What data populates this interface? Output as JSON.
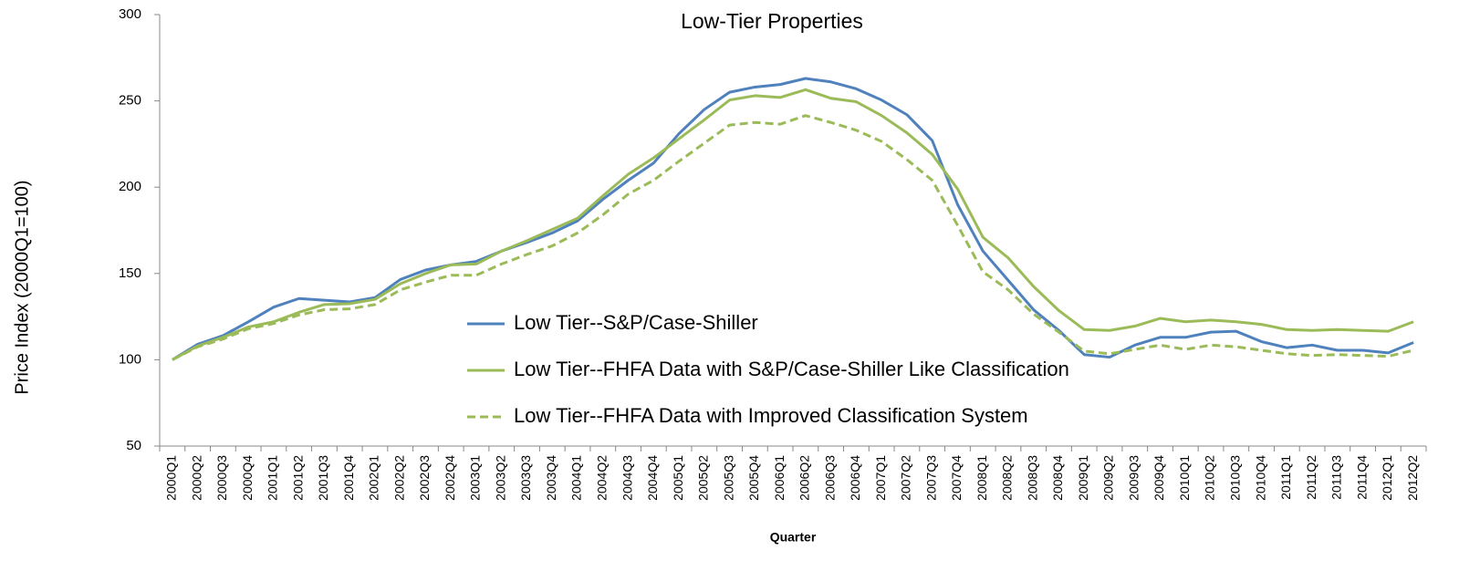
{
  "chart_data": {
    "type": "line",
    "title": "Low-Tier Properties",
    "x_label": "Quarter",
    "y_label": "Price Index (2000Q1=100)",
    "categories": [
      "2000Q1",
      "2000Q2",
      "2000Q3",
      "2000Q4",
      "2001Q1",
      "2001Q2",
      "2001Q3",
      "2001Q4",
      "2002Q1",
      "2002Q2",
      "2002Q3",
      "2002Q4",
      "2003Q1",
      "2003Q2",
      "2003Q3",
      "2003Q4",
      "2004Q1",
      "2004Q2",
      "2004Q3",
      "2004Q4",
      "2005Q1",
      "2005Q2",
      "2005Q3",
      "2005Q4",
      "2006Q1",
      "2006Q2",
      "2006Q3",
      "2006Q4",
      "2007Q1",
      "2007Q2",
      "2007Q3",
      "2007Q4",
      "2008Q1",
      "2008Q2",
      "2008Q3",
      "2008Q4",
      "2009Q1",
      "2009Q2",
      "2009Q3",
      "2009Q4",
      "2010Q1",
      "2010Q2",
      "2010Q3",
      "2010Q4",
      "2011Q1",
      "2011Q2",
      "2011Q3",
      "2011Q4",
      "2012Q1",
      "2012Q2"
    ],
    "series": [
      {
        "name": "Low Tier--S&P/Case-Shiller",
        "color": "#4f81bd",
        "dash": false,
        "values": [
          100,
          109,
          114,
          122,
          130.5,
          135.5,
          134.5,
          133.5,
          136,
          146.5,
          152,
          155,
          157,
          163,
          168,
          173.5,
          180.5,
          193,
          204,
          214,
          231,
          245,
          255,
          258,
          259.5,
          263,
          261,
          257,
          250.5,
          242,
          227,
          190,
          163,
          146,
          129,
          117,
          103,
          101.5,
          108.5,
          113,
          113,
          116,
          116.5,
          110.5,
          107,
          108.5,
          105.5,
          105.5,
          104,
          110
        ]
      },
      {
        "name": "Low Tier--FHFA Data with S&P/Case-Shiller Like Classification",
        "color": "#9bbb59",
        "dash": false,
        "values": [
          100,
          108,
          113,
          119,
          122,
          127.5,
          132,
          132.5,
          135,
          144,
          150,
          155,
          155.5,
          163,
          169,
          175.5,
          182,
          195,
          207.5,
          217,
          228,
          239,
          250.5,
          253,
          252,
          256.5,
          251.5,
          249.5,
          241.5,
          231.5,
          219,
          199,
          171,
          159,
          142.5,
          128.5,
          117.5,
          117,
          119.5,
          124,
          122,
          123,
          122,
          120.5,
          117.5,
          117,
          117.5,
          117,
          116.5,
          122
        ]
      },
      {
        "name": "Low Tier--FHFA Data with Improved Classification System",
        "color": "#9bbb59",
        "dash": true,
        "values": [
          100,
          107.5,
          112,
          118,
          121,
          126,
          129,
          129.5,
          132,
          140.5,
          145,
          149,
          149,
          155.5,
          161,
          166,
          173.5,
          184,
          196,
          204,
          215,
          225.5,
          236,
          237.5,
          236.5,
          241.5,
          237.5,
          233,
          226.5,
          216,
          204,
          178,
          151,
          140.5,
          126.5,
          116,
          105,
          103.5,
          106,
          108.5,
          106,
          108.5,
          107.5,
          105.5,
          103.5,
          102.5,
          103,
          102.5,
          102,
          105.5
        ]
      }
    ],
    "ylim": [
      50,
      300
    ],
    "yticks": [
      50,
      100,
      150,
      200,
      250,
      300
    ],
    "grid": false
  }
}
